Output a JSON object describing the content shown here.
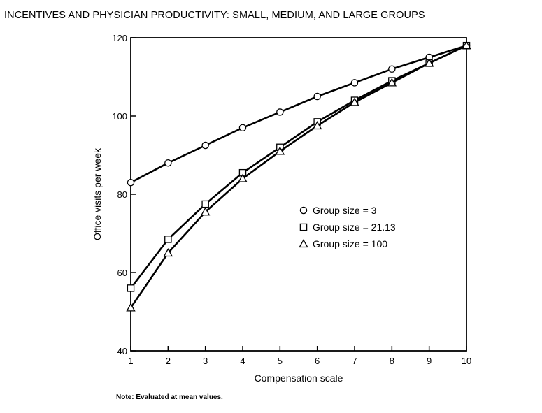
{
  "title": "INCENTIVES AND PHYSICIAN PRODUCTIVITY: SMALL, MEDIUM, AND LARGE GROUPS",
  "note": "Note:  Evaluated at mean values.",
  "chart_data": {
    "type": "line",
    "title": "INCENTIVES AND PHYSICIAN PRODUCTIVITY: SMALL, MEDIUM, AND LARGE GROUPS",
    "xlabel": "Compensation scale",
    "ylabel": "Office visits per week",
    "xlim": [
      1,
      10
    ],
    "ylim": [
      40,
      120
    ],
    "xticks": [
      1,
      2,
      3,
      4,
      5,
      6,
      7,
      8,
      9,
      10
    ],
    "yticks": [
      40,
      60,
      80,
      100,
      120
    ],
    "grid": false,
    "legend_position": "right-center",
    "x": [
      1,
      2,
      3,
      4,
      5,
      6,
      7,
      8,
      9,
      10
    ],
    "series": [
      {
        "name": "Group size = 3",
        "marker": "circle",
        "values": [
          83,
          88,
          92.5,
          97,
          101,
          105,
          108.5,
          112,
          115,
          118
        ]
      },
      {
        "name": "Group size = 21.13",
        "marker": "square",
        "values": [
          56,
          68.5,
          77.5,
          85.5,
          92,
          98.5,
          104,
          109,
          113.5,
          118
        ]
      },
      {
        "name": "Group size = 100",
        "marker": "triangle",
        "values": [
          51,
          65,
          75.5,
          84,
          91,
          97.5,
          103.5,
          108.5,
          113.5,
          118
        ]
      }
    ]
  }
}
